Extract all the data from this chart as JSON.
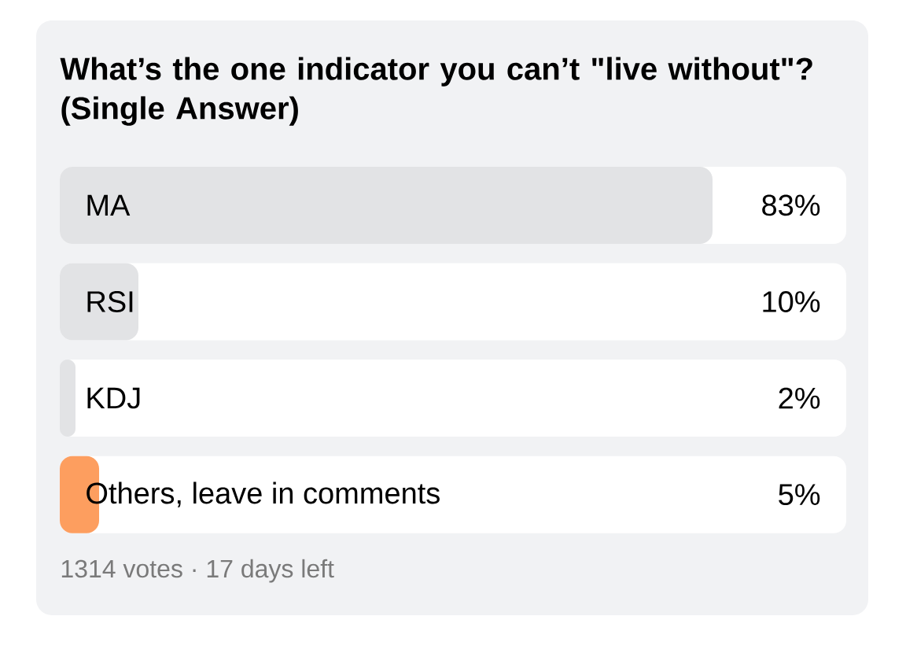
{
  "chart_data": {
    "type": "bar",
    "orientation": "horizontal",
    "title": "What’s the one indicator you can’t \"live without\"? (Single Answer)",
    "categories": [
      "MA",
      "RSI",
      "KDJ",
      "Others, leave in comments"
    ],
    "values": [
      83,
      10,
      2,
      5
    ],
    "colors": [
      "#e2e3e5",
      "#e2e3e5",
      "#e2e3e5",
      "#fd9e5f"
    ],
    "value_labels": [
      "83%",
      "10%",
      "2%",
      "5%"
    ],
    "xlim": [
      0,
      100
    ],
    "tick_labels": "y",
    "annotations": [
      "1314 votes · 17 days left"
    ]
  }
}
